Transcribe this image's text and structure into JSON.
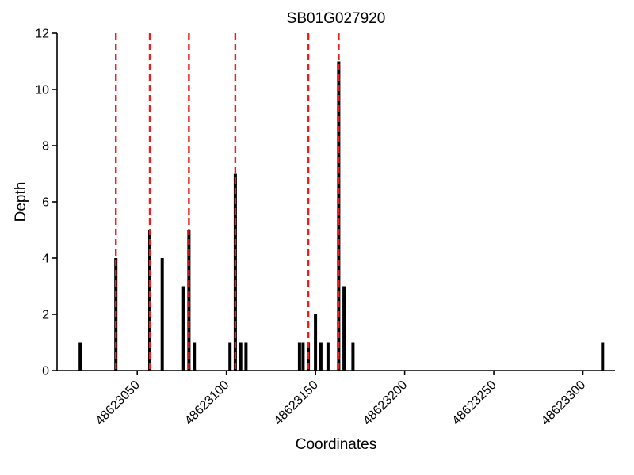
{
  "chart_data": {
    "type": "bar",
    "title": "SB01G027920",
    "xlabel": "Coordinates",
    "ylabel": "Depth",
    "xlim": [
      48623005,
      48623318
    ],
    "ylim": [
      0,
      12
    ],
    "yticks": [
      0,
      2,
      4,
      6,
      8,
      10,
      12
    ],
    "xticks": [
      48623050,
      48623100,
      48623150,
      48623200,
      48623250,
      48623300
    ],
    "grid": false,
    "legend": "none",
    "bar_color": "#000000",
    "marker_color": "#ee1c1c",
    "axis_color": "#000000",
    "bars": [
      {
        "x": 48623018,
        "depth": 1
      },
      {
        "x": 48623038,
        "depth": 4
      },
      {
        "x": 48623057,
        "depth": 5
      },
      {
        "x": 48623064,
        "depth": 4
      },
      {
        "x": 48623076,
        "depth": 3
      },
      {
        "x": 48623079,
        "depth": 5
      },
      {
        "x": 48623082,
        "depth": 1
      },
      {
        "x": 48623102,
        "depth": 1
      },
      {
        "x": 48623105,
        "depth": 7
      },
      {
        "x": 48623108,
        "depth": 1
      },
      {
        "x": 48623111,
        "depth": 1
      },
      {
        "x": 48623141,
        "depth": 1
      },
      {
        "x": 48623143,
        "depth": 1
      },
      {
        "x": 48623146,
        "depth": 1
      },
      {
        "x": 48623150,
        "depth": 2
      },
      {
        "x": 48623153,
        "depth": 1
      },
      {
        "x": 48623157,
        "depth": 1
      },
      {
        "x": 48623163,
        "depth": 11
      },
      {
        "x": 48623166,
        "depth": 3
      },
      {
        "x": 48623171,
        "depth": 1
      },
      {
        "x": 48623311,
        "depth": 1
      }
    ],
    "marker_lines": [
      48623038,
      48623057,
      48623079,
      48623105,
      48623146,
      48623163
    ],
    "marker_line_style": "dashed"
  }
}
